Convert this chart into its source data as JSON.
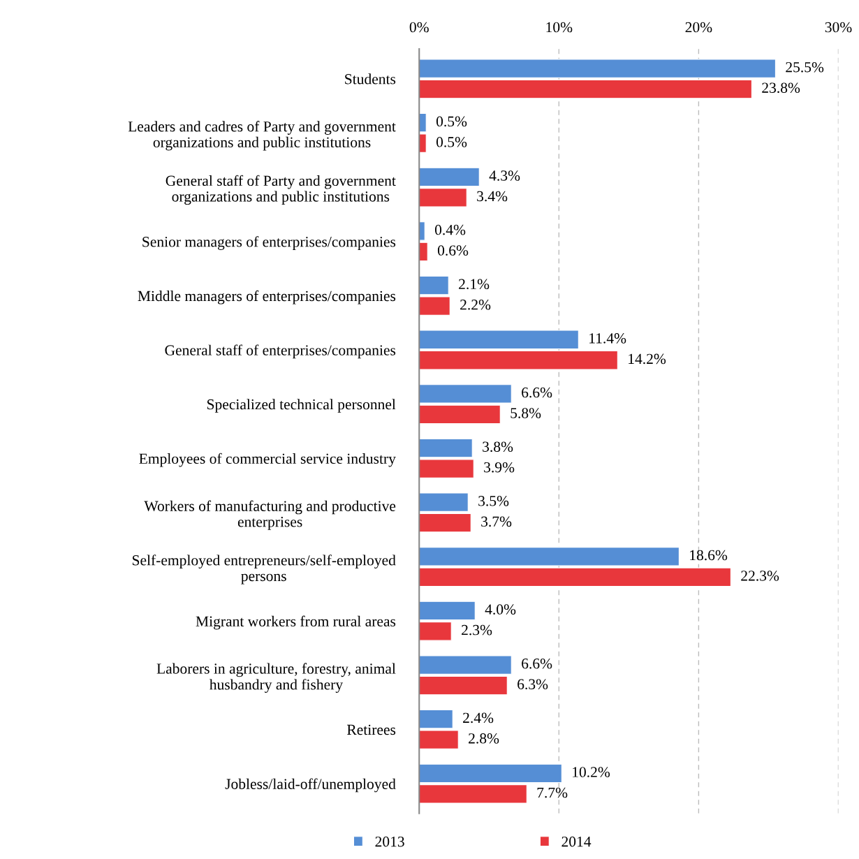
{
  "chart_data": {
    "type": "bar",
    "orientation": "horizontal",
    "categories": [
      "Students",
      "Leaders and cadres of Party and government\norganizations and public institutions",
      "General staff of Party and government\norganizations and public institutions",
      "Senior managers of enterprises/companies",
      "Middle managers of enterprises/companies",
      "General staff of enterprises/companies",
      "Specialized technical personnel",
      "Employees of commercial service industry",
      "Workers of manufacturing and productive\nenterprises",
      "Self-employed entrepreneurs/self-employed\npersons",
      "Migrant workers from rural areas",
      "Laborers in agriculture, forestry, animal\nhusbandry and fishery",
      "Retirees",
      "Jobless/laid-off/unemployed"
    ],
    "series": [
      {
        "name": "2013",
        "color": "#558ed5",
        "values": [
          25.5,
          0.5,
          4.3,
          0.4,
          2.1,
          11.4,
          6.6,
          3.8,
          3.5,
          18.6,
          4.0,
          6.6,
          2.4,
          10.2
        ],
        "value_labels": [
          "25.5%",
          "0.5%",
          "4.3%",
          "0.4%",
          "2.1%",
          "11.4%",
          "6.6%",
          "3.8%",
          "3.5%",
          "18.6%",
          "4.0%",
          "6.6%",
          "2.4%",
          "10.2%"
        ]
      },
      {
        "name": "2014",
        "color": "#e8373c",
        "values": [
          23.8,
          0.5,
          3.4,
          0.6,
          2.2,
          14.2,
          5.8,
          3.9,
          3.7,
          22.3,
          2.3,
          6.3,
          2.8,
          7.7
        ],
        "value_labels": [
          "23.8%",
          "0.5%",
          "3.4%",
          "0.6%",
          "2.2%",
          "14.2%",
          "5.8%",
          "3.9%",
          "3.7%",
          "22.3%",
          "2.3%",
          "6.3%",
          "2.8%",
          "7.7%"
        ]
      }
    ],
    "xlim": [
      0,
      30
    ],
    "xticks": [
      {
        "value": 0,
        "label": "0%"
      },
      {
        "value": 10,
        "label": "10%"
      },
      {
        "value": 20,
        "label": "20%"
      },
      {
        "value": 30,
        "label": "30%"
      }
    ],
    "grid": "x",
    "legend": "bottom"
  }
}
